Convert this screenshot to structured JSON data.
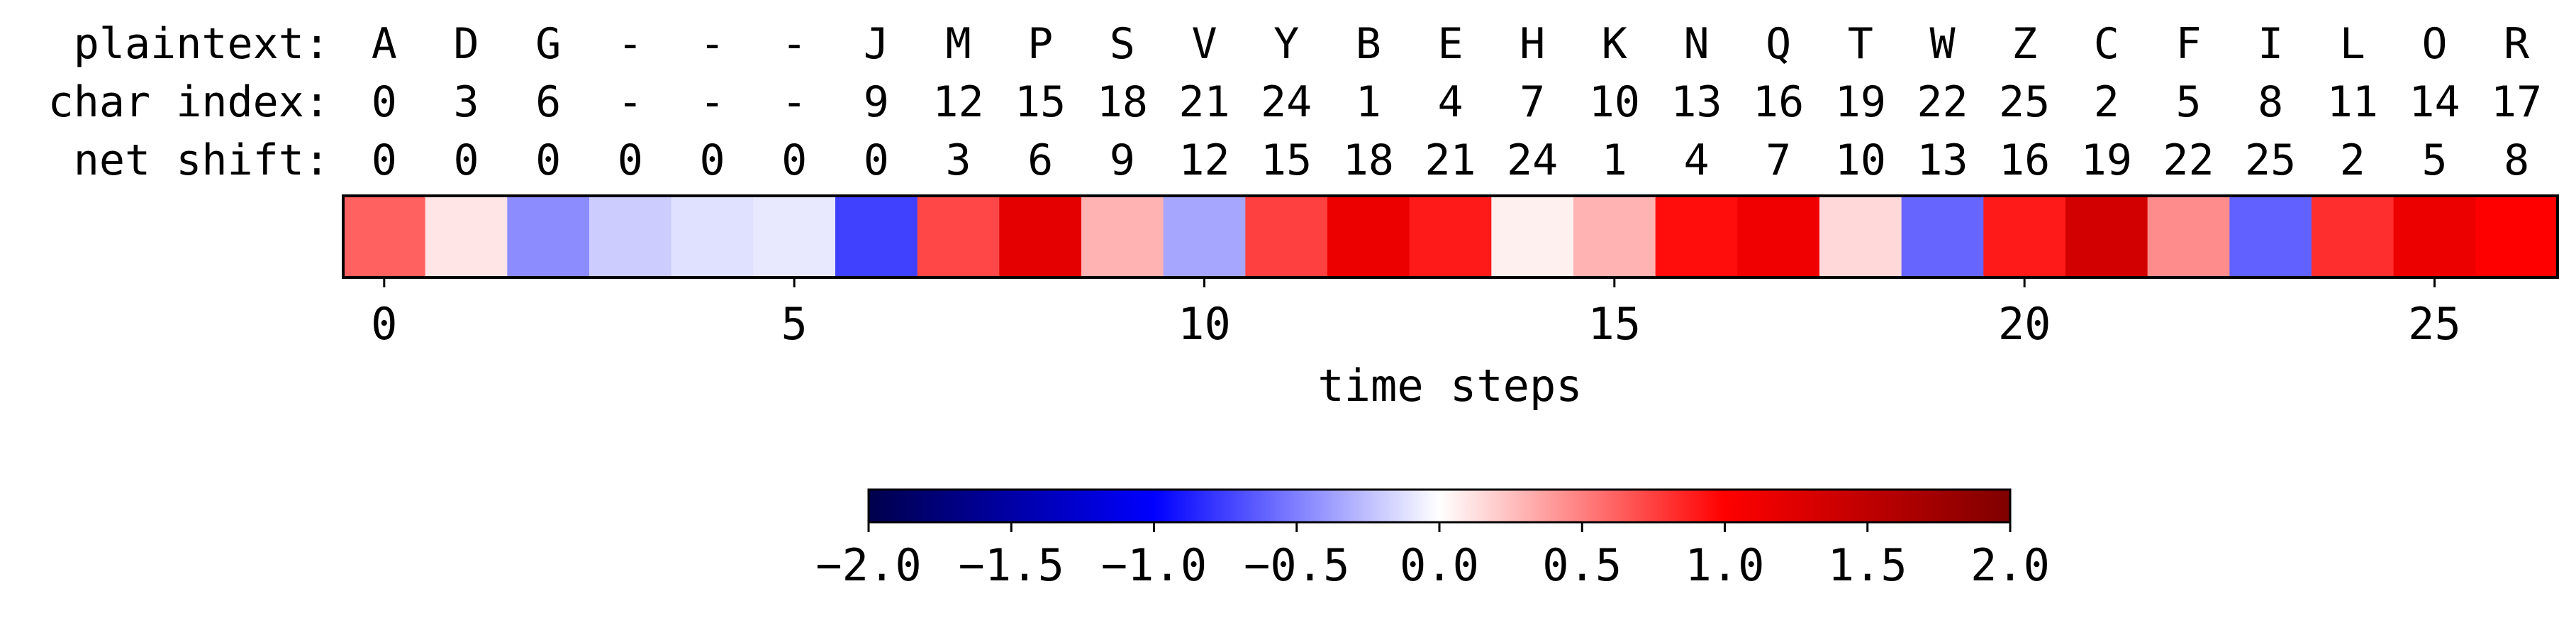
{
  "chart_data": {
    "type": "heatmap",
    "rows": [
      {
        "label": "plaintext:",
        "values": [
          "A",
          "D",
          "G",
          "-",
          "-",
          "-",
          "J",
          "M",
          "P",
          "S",
          "V",
          "Y",
          "B",
          "E",
          "H",
          "K",
          "N",
          "Q",
          "T",
          "W",
          "Z",
          "C",
          "F",
          "I",
          "L",
          "O",
          "R"
        ]
      },
      {
        "label": "char index:",
        "values": [
          "0",
          "3",
          "6",
          "-",
          "-",
          "-",
          "9",
          "12",
          "15",
          "18",
          "21",
          "24",
          "1",
          "4",
          "7",
          "10",
          "13",
          "16",
          "19",
          "22",
          "25",
          "2",
          "5",
          "8",
          "11",
          "14",
          "17"
        ]
      },
      {
        "label": "net shift:",
        "values": [
          "0",
          "0",
          "0",
          "0",
          "0",
          "0",
          "0",
          "3",
          "6",
          "9",
          "12",
          "15",
          "18",
          "21",
          "24",
          "1",
          "4",
          "7",
          "10",
          "13",
          "16",
          "19",
          "22",
          "25",
          "2",
          "5",
          "8"
        ]
      }
    ],
    "values": [
      0.62,
      0.1,
      -0.45,
      -0.2,
      -0.12,
      -0.09,
      -0.75,
      0.72,
      1.2,
      0.3,
      -0.35,
      0.75,
      1.15,
      0.9,
      0.06,
      0.3,
      0.95,
      1.12,
      0.15,
      -0.6,
      0.9,
      1.35,
      0.45,
      -0.62,
      0.82,
      1.15,
      1.0
    ],
    "xlabel": "time steps",
    "xticks": [
      0,
      5,
      10,
      15,
      20,
      25
    ],
    "xlim": [
      -0.5,
      26.5
    ],
    "colorbar": {
      "vmin": -2.0,
      "vmax": 2.0,
      "colormap": "seismic",
      "ticks": [
        -2.0,
        -1.5,
        -1.0,
        -0.5,
        0.0,
        0.5,
        1.0,
        1.5,
        2.0
      ],
      "tick_labels": [
        "−2.0",
        "−1.5",
        "−1.0",
        "−0.5",
        "0.0",
        "0.5",
        "1.0",
        "1.5",
        "2.0"
      ]
    }
  }
}
